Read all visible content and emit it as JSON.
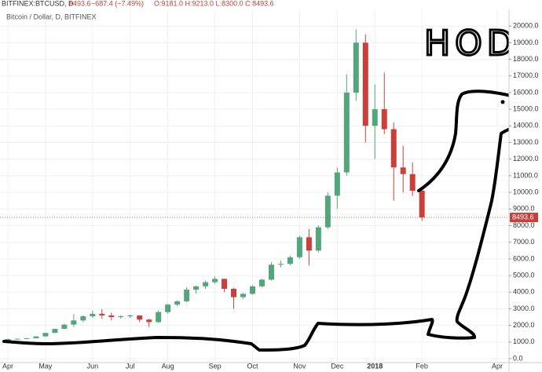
{
  "chart_data": {
    "type": "candlestick",
    "symbol": "BITFINEX:BTCUSD, D",
    "last_price": 8493.6,
    "change": "−687.4 (−7.49%)",
    "ohlc_text": "O:9181.0 H:9213.0 L:8300.0 C:8493.6",
    "subtitle": "Bitcoin / Dollar, D, BITFINEX",
    "annotation": "HODL!",
    "up_color": "#53a57b",
    "down_color": "#c9403a",
    "grid": true,
    "categories": [
      "Apr",
      null,
      null,
      null,
      "May",
      null,
      null,
      null,
      null,
      "Jun",
      null,
      null,
      null,
      "Jul",
      null,
      null,
      null,
      "Aug",
      null,
      null,
      null,
      null,
      "Sep",
      null,
      null,
      null,
      "Oct",
      null,
      null,
      null,
      null,
      "Nov",
      null,
      null,
      null,
      "Dec",
      null,
      null,
      null,
      "2018",
      null,
      null,
      null,
      null,
      "Feb",
      null,
      null,
      null,
      null,
      null,
      null,
      null,
      "Apr"
    ],
    "open": [
      1080,
      1180,
      1200,
      1230,
      1340,
      1550,
      1790,
      2050,
      2300,
      2550,
      2700,
      2600,
      2500,
      2550,
      2600,
      2350,
      2200,
      2800,
      3250,
      3450,
      4150,
      4350,
      4600,
      4800,
      4200,
      3700,
      3900,
      4350,
      4750,
      5650,
      5700,
      6100,
      7300,
      6500,
      7900,
      9800,
      11200,
      16000,
      19000,
      14000,
      15000,
      13800,
      11500,
      11100,
      10100,
      null,
      null,
      null,
      null,
      null,
      null,
      null,
      null
    ],
    "high": [
      1200,
      1220,
      1240,
      1350,
      1560,
      1800,
      2100,
      2700,
      2600,
      2900,
      2980,
      2750,
      2620,
      2650,
      2600,
      2400,
      2900,
      3300,
      3500,
      4300,
      4400,
      4700,
      4950,
      4800,
      4250,
      3950,
      4400,
      4800,
      5800,
      5900,
      6200,
      7400,
      7800,
      8000,
      10000,
      11500,
      17100,
      19800,
      19500,
      16500,
      17200,
      14200,
      12800,
      11800,
      10200,
      null,
      null,
      null,
      null,
      null,
      null,
      null,
      null
    ],
    "low": [
      1050,
      1150,
      1170,
      1220,
      1330,
      1540,
      1780,
      1900,
      2200,
      2450,
      2400,
      2300,
      2400,
      2450,
      2200,
      1900,
      2150,
      2700,
      3150,
      3400,
      3900,
      4200,
      4500,
      4000,
      3000,
      3600,
      3850,
      4300,
      4700,
      5500,
      5600,
      6000,
      5600,
      6400,
      7800,
      9000,
      11000,
      15500,
      13000,
      12000,
      13500,
      9500,
      10000,
      9800,
      8300,
      null,
      null,
      null,
      null,
      null,
      null,
      null,
      null
    ],
    "close": [
      1180,
      1200,
      1230,
      1340,
      1550,
      1790,
      2050,
      2300,
      2550,
      2700,
      2600,
      2500,
      2550,
      2600,
      2350,
      2200,
      2800,
      3250,
      3450,
      4150,
      4350,
      4600,
      4800,
      4200,
      3700,
      3900,
      4350,
      4750,
      5650,
      5700,
      6100,
      7300,
      6500,
      7900,
      9800,
      11200,
      16000,
      19000,
      14000,
      15000,
      13800,
      11500,
      11100,
      10100,
      8493.6,
      null,
      null,
      null,
      null,
      null,
      null,
      null,
      null
    ],
    "ylim": [
      -140,
      21000
    ],
    "yticks": [
      {
        "value": 0,
        "label": "0.0"
      },
      {
        "value": 1000,
        "label": "1000.0"
      },
      {
        "value": 2000,
        "label": "2000.0"
      },
      {
        "value": 3000,
        "label": "3000.0"
      },
      {
        "value": 4000,
        "label": "4000.0"
      },
      {
        "value": 5000,
        "label": "5000.0"
      },
      {
        "value": 6000,
        "label": "6000.0"
      },
      {
        "value": 7000,
        "label": "7000.0"
      },
      {
        "value": 8000,
        "label": "8000.0"
      },
      {
        "value": 9000,
        "label": "9000.0"
      },
      {
        "value": 10000,
        "label": "10000.0"
      },
      {
        "value": 11000,
        "label": "11000.0"
      },
      {
        "value": 12000,
        "label": "12000.0"
      },
      {
        "value": 13000,
        "label": "13000.0"
      },
      {
        "value": 14000,
        "label": "14000.0"
      },
      {
        "value": 15000,
        "label": "15000.0"
      },
      {
        "value": 16000,
        "label": "16000.0"
      },
      {
        "value": 17000,
        "label": "17000.0"
      },
      {
        "value": 18000,
        "label": "18000.0"
      },
      {
        "value": 19000,
        "label": "19000.0"
      },
      {
        "value": 20000,
        "label": "20000.0"
      }
    ]
  }
}
